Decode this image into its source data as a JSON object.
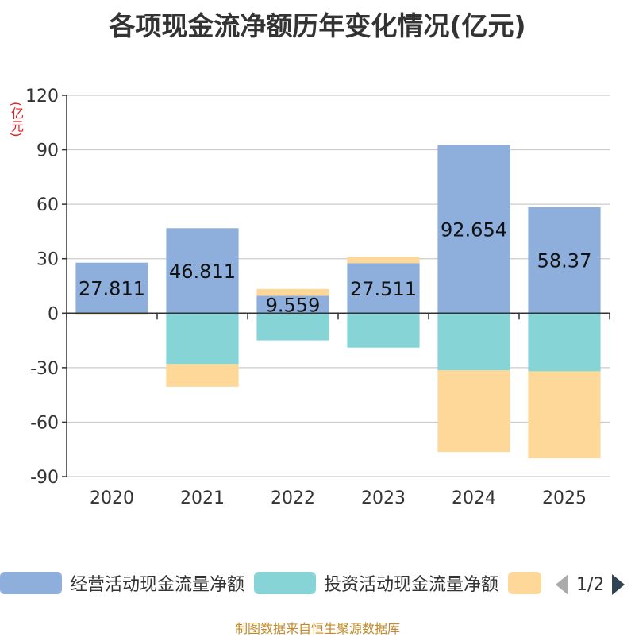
{
  "title": "各项现金流净额历年变化情况(亿元)",
  "source": "制图数据来自恒生聚源数据库",
  "chart_data": {
    "type": "bar",
    "stacked": true,
    "unit_label": "(亿元)",
    "categories": [
      "2020",
      "2021",
      "2022",
      "2023",
      "2024",
      "2025"
    ],
    "ylim": [
      -90,
      120
    ],
    "yticks": [
      120,
      90,
      60,
      30,
      0,
      -30,
      -60,
      -90
    ],
    "series": [
      {
        "name": "经营活动现金流量净额",
        "color": "#8eaedb",
        "values": [
          27.811,
          46.811,
          9.559,
          27.511,
          92.654,
          58.37
        ]
      },
      {
        "name": "投资活动现金流量净额",
        "color": "#86d4d6",
        "values": [
          0,
          -28,
          -15,
          -19,
          -31.5,
          -32
        ]
      },
      {
        "name": "",
        "color": "#fdd899",
        "values": [
          -0.6,
          -12.5,
          3.8,
          3.5,
          -45,
          -48
        ]
      }
    ],
    "data_labels": [
      "27.811",
      "46.811",
      "9.559",
      "27.511",
      "92.654",
      "58.37"
    ]
  },
  "legend": {
    "items": [
      "经营活动现金流量净额",
      "投资活动现金流量净额",
      ""
    ],
    "page": "1/2"
  }
}
